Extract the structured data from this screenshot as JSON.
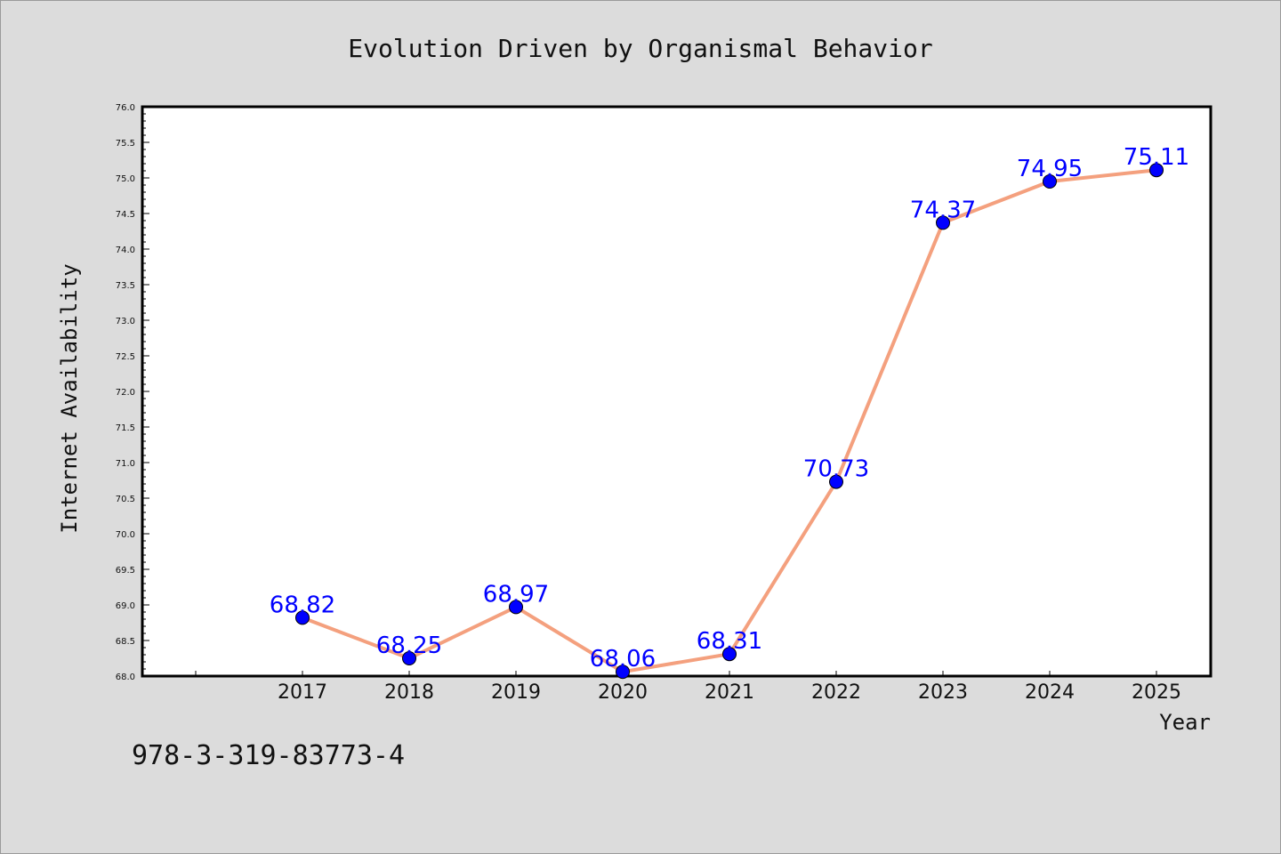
{
  "chart_data": {
    "type": "line",
    "title": "Evolution Driven by Organismal Behavior",
    "xlabel": "Year",
    "ylabel": "Internet Availability",
    "categories": [
      "2017",
      "2018",
      "2019",
      "2020",
      "2021",
      "2022",
      "2023",
      "2024",
      "2025"
    ],
    "series": [
      {
        "values": [
          68.82,
          68.25,
          68.97,
          68.06,
          68.31,
          70.73,
          74.37,
          74.95,
          75.11
        ],
        "line_color": "#f4a07e",
        "marker_color": "#0000ff"
      }
    ],
    "data_labels": [
      "68.82",
      "68.25",
      "68.97",
      "68.06",
      "68.31",
      "70.73",
      "74.37",
      "74.95",
      "75.11"
    ],
    "ylim": [
      68.0,
      76.0
    ],
    "yticks": [
      "68.0",
      "68.5",
      "69.0",
      "69.5",
      "70.0",
      "70.5",
      "71.0",
      "71.5",
      "72.0",
      "72.5",
      "73.0",
      "73.5",
      "74.0",
      "74.5",
      "75.0",
      "75.5",
      "76.0"
    ],
    "grid": false,
    "legend": "none"
  },
  "footer": {
    "isbn": "978-3-319-83773-4"
  },
  "colors": {
    "background": "#dcdcdc",
    "plot_area": "#ffffff",
    "line": "#f4a07e",
    "marker": "#0000ff",
    "data_label": "#0000ff"
  }
}
